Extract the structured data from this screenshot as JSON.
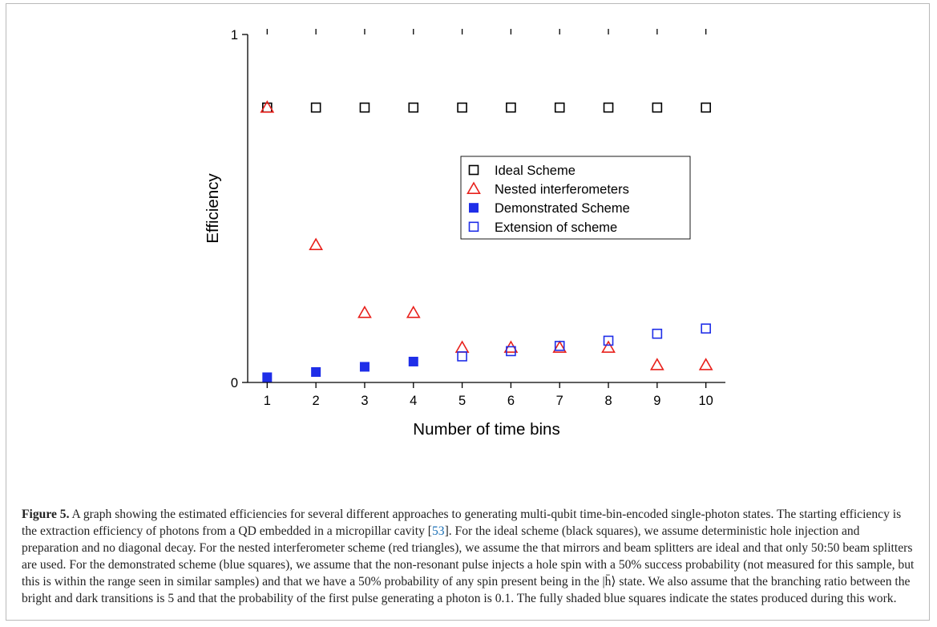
{
  "chart_data": {
    "type": "scatter",
    "xlabel": "Number of time bins",
    "ylabel": "Efficiency",
    "xlim": [
      0.6,
      10.4
    ],
    "ylim": [
      0,
      1
    ],
    "x_ticks": [
      1,
      2,
      3,
      4,
      5,
      6,
      7,
      8,
      9,
      10
    ],
    "y_tick_labels": [
      "0",
      "1"
    ],
    "y_ticks": [
      0,
      1
    ],
    "legend_position": "center-right",
    "grid": false,
    "series": [
      {
        "name": "Ideal Scheme",
        "marker": "open-square",
        "color": "#000000",
        "x": [
          1,
          2,
          3,
          4,
          5,
          6,
          7,
          8,
          9,
          10
        ],
        "y": [
          0.79,
          0.79,
          0.79,
          0.79,
          0.79,
          0.79,
          0.79,
          0.79,
          0.79,
          0.79
        ]
      },
      {
        "name": "Nested interferometers",
        "marker": "open-triangle",
        "color": "#e8211c",
        "x": [
          1,
          2,
          3,
          4,
          5,
          6,
          7,
          8,
          9,
          10
        ],
        "y": [
          0.79,
          0.395,
          0.2,
          0.2,
          0.1,
          0.1,
          0.1,
          0.1,
          0.05,
          0.05
        ]
      },
      {
        "name": "Demonstrated Scheme",
        "marker": "filled-square",
        "color": "#1f2ee8",
        "x": [
          1,
          2,
          3,
          4
        ],
        "y": [
          0.015,
          0.03,
          0.045,
          0.06
        ]
      },
      {
        "name": "Extension of scheme",
        "marker": "open-square",
        "color": "#1f2ee8",
        "x": [
          5,
          6,
          7,
          8,
          9,
          10
        ],
        "y": [
          0.075,
          0.09,
          0.105,
          0.12,
          0.14,
          0.155
        ]
      }
    ]
  },
  "caption": {
    "label": "Figure 5.",
    "part1": " A graph showing the estimated efficiencies for several different approaches to generating multi-qubit time-bin-encoded single-photon states. The starting efficiency is the extraction efficiency of photons from a QD embedded in a micropillar cavity [",
    "cite": "53",
    "part2": "]. For the ideal scheme (black squares), we assume deterministic hole injection and preparation and no diagonal decay. For the nested interferometer scheme (red triangles), we assume the that mirrors and beam splitters are ideal and that only 50:50 beam splitters are used. For the demonstrated scheme (blue squares), we assume that the non-resonant pulse injects a hole spin with a 50% success probability (not measured for this sample, but this is within the range seen in similar samples) and that we have a 50% probability of any spin present being in the |h̄⟩ state. We also assume that the branching ratio between the bright and dark transitions is 5 and that the probability of the first pulse generating a photon is 0.1. The fully shaded blue squares indicate the states produced during this work."
  }
}
